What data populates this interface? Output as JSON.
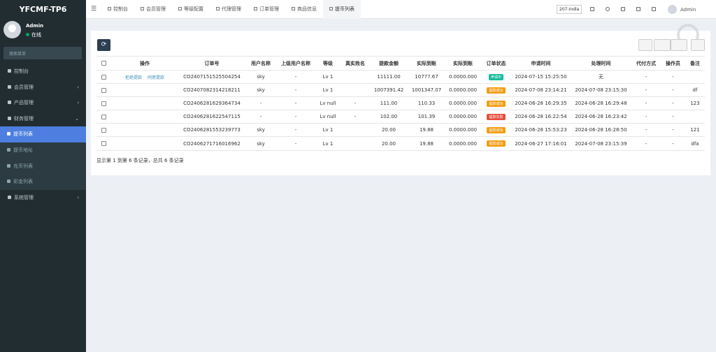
{
  "sidebar": {
    "logo": "YFCMF-TP6",
    "user": {
      "name": "Admin",
      "status": "在线"
    },
    "search_placeholder": "搜索菜单",
    "menu": [
      {
        "label": "控制台"
      },
      {
        "label": "会员管理"
      },
      {
        "label": "产品管理"
      },
      {
        "label": "财务管理",
        "children": [
          {
            "label": "提币列表",
            "active": true
          },
          {
            "label": "提币地址"
          },
          {
            "label": "充币列表"
          },
          {
            "label": "彩金列表"
          }
        ]
      },
      {
        "label": "系统管理"
      }
    ]
  },
  "topbar": {
    "tabs": [
      {
        "label": "控制台"
      },
      {
        "label": "会员管理"
      },
      {
        "label": "等级配置"
      },
      {
        "label": "代理管理"
      },
      {
        "label": "订单管理"
      },
      {
        "label": "商品信息"
      },
      {
        "label": "提币列表",
        "active": true
      }
    ],
    "site": "207-India",
    "user": "Admin"
  },
  "table": {
    "columns": [
      "操作",
      "订单号",
      "用户名称",
      "上级用户名称",
      "等级",
      "真实姓名",
      "提款金额",
      "实际到账",
      "实际到账",
      "订单状态",
      "申请时间",
      "处理时间",
      "代付方式",
      "操作员",
      "备注"
    ],
    "rows": [
      {
        "actions": [
          "拒绝提款",
          "同意提款"
        ],
        "status_color": "#18bc9c",
        "cells": [
          "CO2407151525504254",
          "sky",
          "-",
          "Lv 1",
          null,
          "11111.00",
          "10777.67",
          "0.0000.000",
          "申请中",
          "2024-07-15 15:25:50",
          "无",
          "-",
          "-",
          null
        ]
      },
      {
        "status_color": "#f39c12",
        "cells": [
          "CO2407082314218211",
          "sky",
          "-",
          "Lv 1",
          null,
          "1007391.42",
          "1001347.07",
          "0.0000.000",
          "提款成功",
          "2024-07-08 23:14:21",
          "2024-07-08 23:15:30",
          "-",
          "-",
          "df"
        ]
      },
      {
        "status_color": "#f39c12",
        "cells": [
          "CO2406281629364734",
          "-",
          "-",
          "Lv null",
          "-",
          "111.00",
          "110.33",
          "0.0000.000",
          "提款成功",
          "2024-06-28 16:29:35",
          "2024-06-28 16:29:48",
          "-",
          "-",
          "123"
        ]
      },
      {
        "status_color": "#e74c3c",
        "cells": [
          "CO2406281622547115",
          "-",
          "-",
          "Lv null",
          "-",
          "102.00",
          "101.39",
          "0.0000.000",
          "提款失败",
          "2024-06-28 16:22:54",
          "2024-06-28 16:23:42",
          "-",
          "-",
          null
        ]
      },
      {
        "status_color": "#f39c12",
        "cells": [
          "CO2406281553239773",
          "sky",
          "-",
          "Lv 1",
          null,
          "20.00",
          "19.88",
          "0.0000.000",
          "提款成功",
          "2024-06-28 15:53:23",
          "2024-06-28 16:28:50",
          "-",
          "-",
          "121"
        ]
      },
      {
        "status_color": "#f39c12",
        "cells": [
          "CO2406271716016962",
          "sky",
          "-",
          "Lv 1",
          null,
          "20.00",
          "19.88",
          "0.0000.000",
          "提款成功",
          "2024-06-27 17:16:01",
          "2024-07-08 23:15:39",
          "-",
          "-",
          "dfa"
        ]
      }
    ],
    "footer": "显示第 1 到第 6 条记录，总共 6 条记录"
  }
}
